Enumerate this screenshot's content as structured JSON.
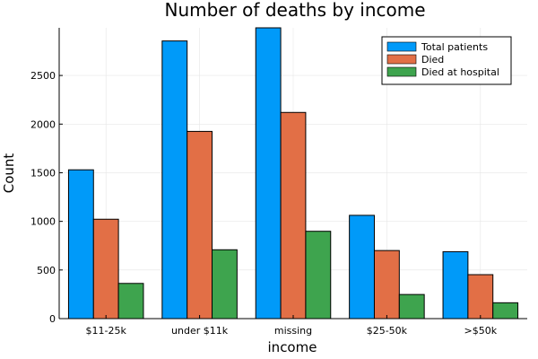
{
  "chart_data": {
    "type": "bar",
    "title": "Number of deaths by income",
    "xlabel": "income",
    "ylabel": "Count",
    "categories": [
      "$11-25k",
      "under $11k",
      "missing",
      "$25-50k",
      ">$50k"
    ],
    "series": [
      {
        "name": "Total patients",
        "color": "#009af9",
        "values": [
          1530,
          2855,
          2990,
          1062,
          688
        ]
      },
      {
        "name": "Died",
        "color": "#e26f46",
        "values": [
          1022,
          1925,
          2120,
          700,
          452
        ]
      },
      {
        "name": "Died at hospital",
        "color": "#3ea44e",
        "values": [
          362,
          708,
          898,
          248,
          163
        ]
      }
    ],
    "ylim": [
      0,
      2990
    ],
    "yticks": [
      0,
      500,
      1000,
      1500,
      2000,
      2500
    ],
    "grid": true,
    "legend_position": "top-right"
  }
}
